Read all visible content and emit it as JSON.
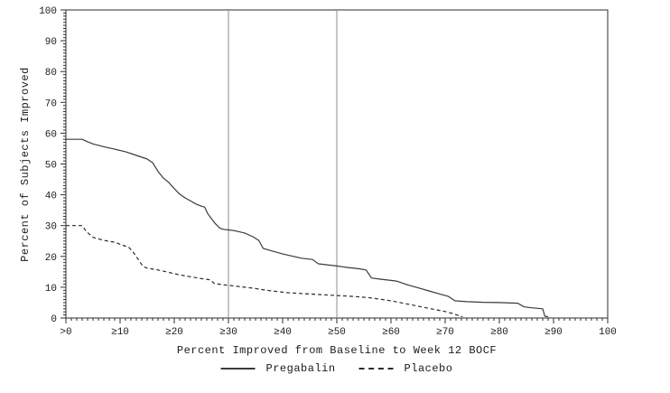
{
  "chart_data": {
    "type": "line",
    "title": "",
    "xlabel": "Percent Improved from Baseline to Week 12 BOCF",
    "ylabel": "Percent of Subjects Improved",
    "xlim": [
      0,
      100
    ],
    "ylim": [
      0,
      100
    ],
    "grid": false,
    "legend_position": "bottom",
    "x_tick_values": [
      0,
      10,
      20,
      30,
      40,
      50,
      60,
      70,
      80,
      90,
      100
    ],
    "x_tick_labels": [
      ">0",
      "≥10",
      "≥20",
      "≥30",
      "≥40",
      "≥50",
      "≥60",
      "≥70",
      "≥80",
      "≥90",
      "100"
    ],
    "y_tick_values": [
      0,
      10,
      20,
      30,
      40,
      50,
      60,
      70,
      80,
      90,
      100
    ],
    "y_tick_labels": [
      "0",
      "10",
      "20",
      "30",
      "40",
      "50",
      "60",
      "70",
      "80",
      "90",
      "100"
    ],
    "minor_tick_step": 1,
    "reference_lines_x": [
      30,
      50
    ],
    "series": [
      {
        "name": "Pregabalin",
        "style": "solid",
        "points": [
          [
            0,
            58
          ],
          [
            3,
            58
          ],
          [
            4,
            57.2
          ],
          [
            5,
            56.5
          ],
          [
            7,
            55.6
          ],
          [
            9,
            54.8
          ],
          [
            11,
            54
          ],
          [
            13,
            52.8
          ],
          [
            15,
            51.6
          ],
          [
            16,
            50.4
          ],
          [
            17,
            47.6
          ],
          [
            18,
            45.4
          ],
          [
            19,
            44
          ],
          [
            20,
            42
          ],
          [
            21,
            40.2
          ],
          [
            22,
            39
          ],
          [
            23,
            38
          ],
          [
            24,
            37
          ],
          [
            25,
            36.3
          ],
          [
            25.6,
            36
          ],
          [
            26.2,
            33.8
          ],
          [
            26.8,
            32.4
          ],
          [
            27.6,
            30.6
          ],
          [
            28.4,
            29.2
          ],
          [
            29,
            28.8
          ],
          [
            31,
            28.4
          ],
          [
            33,
            27.6
          ],
          [
            34.5,
            26.4
          ],
          [
            35.6,
            25.2
          ],
          [
            36.4,
            22.6
          ],
          [
            38,
            21.8
          ],
          [
            40,
            20.8
          ],
          [
            42,
            20
          ],
          [
            43.5,
            19.4
          ],
          [
            45.5,
            19
          ],
          [
            46.6,
            17.6
          ],
          [
            48,
            17.3
          ],
          [
            50,
            16.9
          ],
          [
            52,
            16.4
          ],
          [
            54,
            16
          ],
          [
            55.4,
            15.6
          ],
          [
            56.4,
            13
          ],
          [
            58,
            12.6
          ],
          [
            60,
            12.2
          ],
          [
            61,
            12
          ],
          [
            63,
            10.8
          ],
          [
            65,
            9.8
          ],
          [
            67,
            8.8
          ],
          [
            69,
            7.8
          ],
          [
            70.6,
            7
          ],
          [
            71.8,
            5.6
          ],
          [
            74,
            5.3
          ],
          [
            77,
            5.1
          ],
          [
            80,
            5
          ],
          [
            83.4,
            4.8
          ],
          [
            84.6,
            3.6
          ],
          [
            86,
            3.3
          ],
          [
            88,
            3
          ],
          [
            88.4,
            0.6
          ],
          [
            89,
            0.4
          ]
        ]
      },
      {
        "name": "Placebo",
        "style": "dashed",
        "points": [
          [
            0,
            30
          ],
          [
            3,
            30
          ],
          [
            3.8,
            28
          ],
          [
            5,
            26.2
          ],
          [
            7,
            25.2
          ],
          [
            9,
            24.6
          ],
          [
            10.5,
            23.6
          ],
          [
            11.6,
            23
          ],
          [
            12.4,
            21.4
          ],
          [
            13.2,
            19.4
          ],
          [
            14.2,
            16.8
          ],
          [
            15,
            16.2
          ],
          [
            17,
            15.6
          ],
          [
            19,
            14.8
          ],
          [
            21,
            14
          ],
          [
            23,
            13.4
          ],
          [
            25,
            12.8
          ],
          [
            26.6,
            12.4
          ],
          [
            27.4,
            11.2
          ],
          [
            29,
            10.8
          ],
          [
            31,
            10.4
          ],
          [
            33,
            10
          ],
          [
            35,
            9.6
          ],
          [
            37,
            9
          ],
          [
            39,
            8.6
          ],
          [
            41,
            8.2
          ],
          [
            43,
            8
          ],
          [
            45,
            7.8
          ],
          [
            47,
            7.6
          ],
          [
            50,
            7.3
          ],
          [
            53,
            7
          ],
          [
            56,
            6.6
          ],
          [
            58,
            6.1
          ],
          [
            60,
            5.6
          ],
          [
            62,
            4.9
          ],
          [
            64,
            4.2
          ],
          [
            66,
            3.5
          ],
          [
            68,
            2.8
          ],
          [
            70,
            2.1
          ],
          [
            71.5,
            1.4
          ],
          [
            72.6,
            0.7
          ],
          [
            73.2,
            0.4
          ]
        ]
      }
    ]
  },
  "colors": {
    "line_solid": "#3a3a3a",
    "line_dashed": "#2a2a2a",
    "reference_line": "#8c8c8c",
    "border": "#2e2e2e",
    "tick": "#2e2e2e",
    "text": "#1a1a1a",
    "background": "#ffffff"
  },
  "legend": {
    "pregabalin_label": "Pregabalin",
    "placebo_label": "Placebo"
  }
}
